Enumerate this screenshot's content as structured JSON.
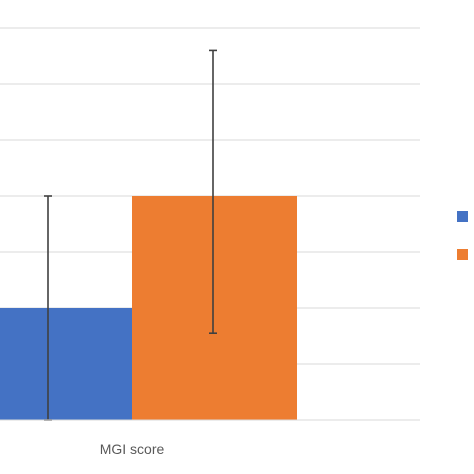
{
  "chart_data": {
    "type": "bar",
    "categories": [
      "MGI score"
    ],
    "series": [
      {
        "color": "#4472c4",
        "value": 2.0,
        "err_low": 0.0,
        "err_high": 4.0
      },
      {
        "color": "#ed7d31",
        "value": 4.0,
        "err_low": 1.55,
        "err_high": 6.6
      }
    ],
    "ylim": [
      0,
      7.5
    ],
    "grid": true,
    "legend_position": "right",
    "title": "",
    "xlabel": "",
    "ylabel": ""
  }
}
